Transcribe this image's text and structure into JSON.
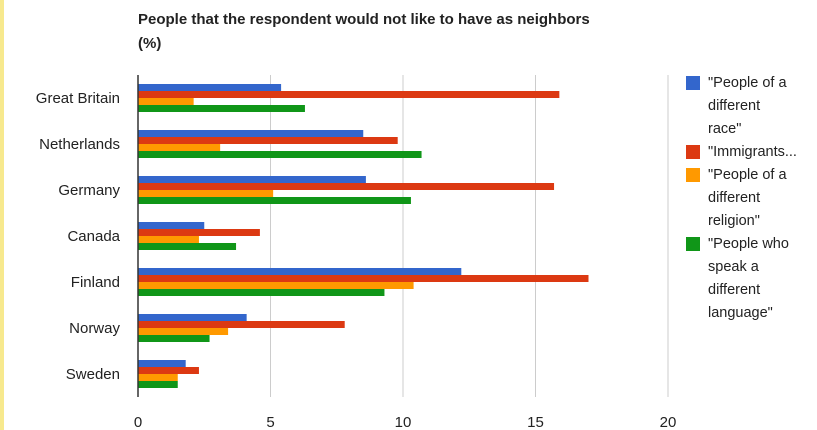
{
  "chart_data": {
    "type": "bar",
    "orientation": "horizontal",
    "title": "People that the respondent would not like to have as neighbors\n(%)",
    "categories": [
      "Great Britain",
      "Netherlands",
      "Germany",
      "Canada",
      "Finland",
      "Norway",
      "Sweden"
    ],
    "series": [
      {
        "name": "\"People of a\ndifferent\nrace\"",
        "color": "#3366cc",
        "values": [
          5.4,
          8.5,
          8.6,
          2.5,
          12.2,
          4.1,
          1.8
        ]
      },
      {
        "name": "\"Immigrants...",
        "color": "#dc3912",
        "values": [
          15.9,
          9.8,
          15.7,
          4.6,
          17.0,
          7.8,
          2.3
        ]
      },
      {
        "name": "\"People of a\ndifferent\nreligion\"",
        "color": "#ff9900",
        "values": [
          2.1,
          3.1,
          5.1,
          2.3,
          10.4,
          3.4,
          1.5
        ]
      },
      {
        "name": "\"People who\nspeak a\ndifferent\nlanguage\"",
        "color": "#109618",
        "values": [
          6.3,
          10.7,
          10.3,
          3.7,
          9.3,
          2.7,
          1.5
        ]
      }
    ],
    "xlim": [
      0,
      20
    ],
    "xticks": [
      "0",
      "5",
      "10",
      "15",
      "20"
    ],
    "grid": true,
    "legend_position": "right"
  }
}
